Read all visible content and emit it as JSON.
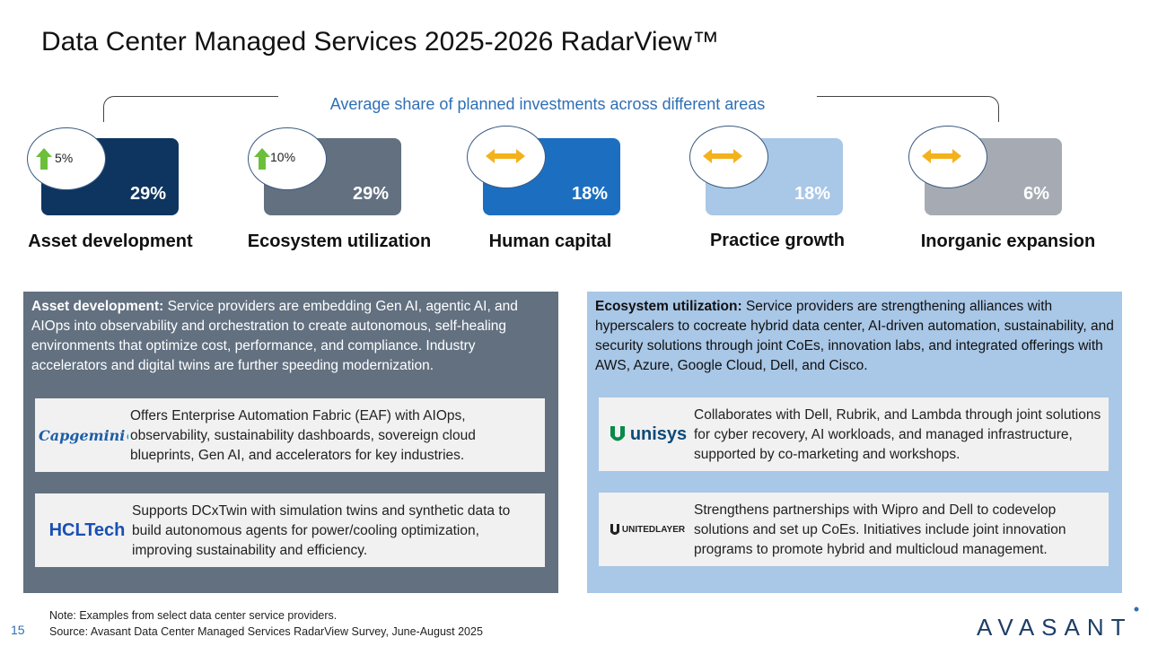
{
  "title": "Data Center Managed Services 2025-2026 RadarView™",
  "bracket_label": "Average share of planned investments across different areas",
  "areas": [
    {
      "label": "Asset development",
      "share": "29%",
      "change": "5%",
      "trend": "up",
      "color": "#0d3560"
    },
    {
      "label": "Ecosystem utilization",
      "share": "29%",
      "change": "10%",
      "trend": "up",
      "color": "#627080"
    },
    {
      "label": "Human capital",
      "share": "18%",
      "change": "",
      "trend": "flat",
      "color": "#1c6fc0"
    },
    {
      "label": "Practice growth",
      "share": "18%",
      "change": "",
      "trend": "flat",
      "color": "#a9c7e6"
    },
    {
      "label": "Inorganic expansion",
      "share": "6%",
      "change": "",
      "trend": "flat",
      "color": "#a6abb3"
    }
  ],
  "left_panel": {
    "heading": "Asset development:",
    "text": " Service providers are embedding Gen AI, agentic AI, and AIOps into observability and orchestration to create autonomous, self-healing environments that optimize cost, performance, and compliance. Industry accelerators and digital twins are further speeding modernization.",
    "cards": [
      {
        "logo": "Capgemini",
        "desc": "Offers Enterprise Automation Fabric (EAF) with AIOps, observability, sustainability dashboards, sovereign cloud blueprints, Gen AI, and accelerators for key industries."
      },
      {
        "logo": "HCLTech",
        "desc": "Supports DCxTwin with simulation twins and synthetic data to build autonomous agents for power/cooling optimization, improving sustainability and efficiency."
      }
    ]
  },
  "right_panel": {
    "heading": "Ecosystem utilization:",
    "text": " Service providers are strengthening alliances with hyperscalers to cocreate hybrid data center, AI-driven automation, sustainability, and security solutions through joint CoEs, innovation labs, and integrated offerings with AWS, Azure, Google Cloud, Dell, and Cisco.",
    "cards": [
      {
        "logo": "unisys",
        "desc": "Collaborates with Dell, Rubrik, and Lambda through joint solutions for cyber recovery, AI workloads, and managed infrastructure, supported by co-marketing and workshops."
      },
      {
        "logo": "UNITEDLAYER",
        "desc": "Strengthens partnerships with Wipro and Dell to codevelop solutions and set up CoEs. Initiatives include joint innovation programs to promote hybrid and multicloud management."
      }
    ]
  },
  "footer": {
    "note": "Note: Examples from select data center service providers.",
    "source": "Source: Avasant Data Center Managed Services RadarView Survey, June-August 2025",
    "page": "15",
    "brand": "AVASANT"
  }
}
